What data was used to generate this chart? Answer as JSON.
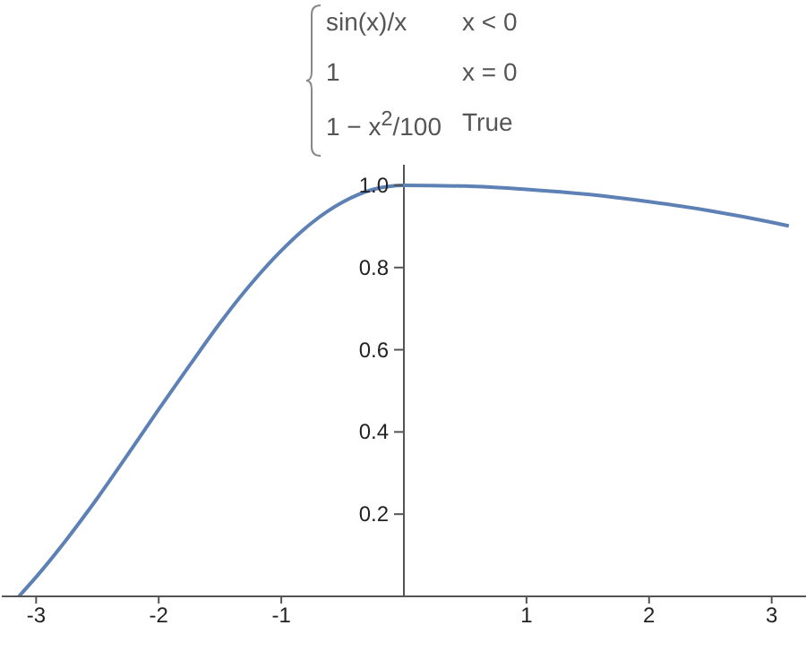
{
  "chart_data": {
    "type": "line",
    "annotations": [
      "sin(x)/x\tx < 0",
      "1\tx = 0",
      "1 − x$^{2}$/100\tTrue"
    ],
    "x": [
      -3.14,
      -3,
      -2.75,
      -2.5,
      -2.25,
      -2,
      -1.75,
      -1.5,
      -1.25,
      -1,
      -0.75,
      -0.5,
      -0.25,
      0,
      0.5,
      1,
      1.5,
      2,
      2.5,
      3,
      3.14
    ],
    "series": [
      {
        "color": "#5e81b5",
        "values": [
          0.0,
          0.047,
          0.139,
          0.239,
          0.346,
          0.455,
          0.561,
          0.665,
          0.759,
          0.841,
          0.909,
          0.959,
          0.99,
          1,
          0.998,
          0.99,
          0.978,
          0.96,
          0.938,
          0.91,
          0.901
        ]
      }
    ],
    "xlim": [
      -3.28,
      3.28
    ],
    "ylim": [
      0,
      1.05
    ],
    "xticks": [
      -3,
      -2,
      -1,
      1,
      2,
      3
    ],
    "yticks": [
      0.2,
      0.4,
      0.6,
      0.8,
      {
        "value": 1,
        "label": "1.0"
      }
    ],
    "marker": "none",
    "line_style": "solid"
  }
}
